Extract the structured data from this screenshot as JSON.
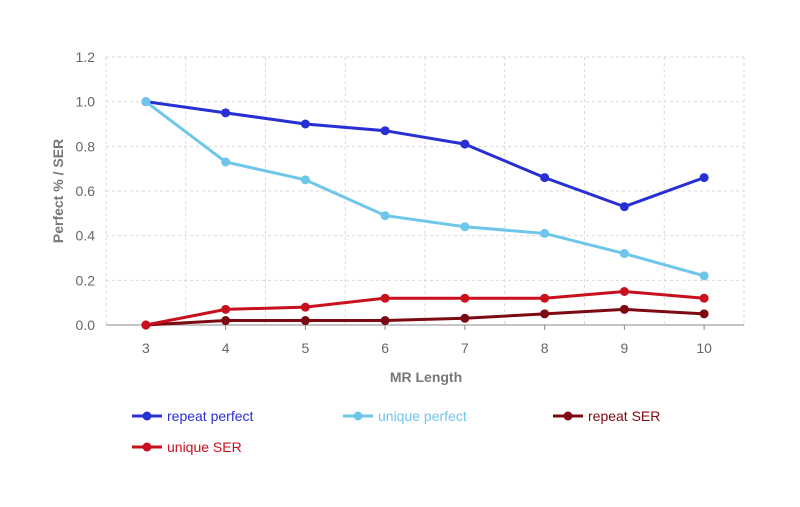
{
  "chart_data": {
    "type": "line",
    "title": "",
    "xlabel": "MR Length",
    "ylabel": "Perfect % / SER",
    "x": [
      3,
      4,
      5,
      6,
      7,
      8,
      9,
      10
    ],
    "ylim": [
      0,
      1.2
    ],
    "yticks": [
      "0.0",
      "0.2",
      "0.4",
      "0.6",
      "0.8",
      "1.0",
      "1.2"
    ],
    "xticks": [
      "3",
      "4",
      "5",
      "6",
      "7",
      "8",
      "9",
      "10"
    ],
    "grid": true,
    "legend_position": "bottom",
    "series": [
      {
        "name": "repeat perfect",
        "color": "#2830d4",
        "values": [
          1.0,
          0.95,
          0.9,
          0.87,
          0.81,
          0.66,
          0.53,
          0.66
        ]
      },
      {
        "name": "unique perfect",
        "color": "#6ec6ea",
        "values": [
          1.0,
          0.73,
          0.65,
          0.49,
          0.44,
          0.41,
          0.32,
          0.22
        ]
      },
      {
        "name": "repeat SER",
        "color": "#7d0a12",
        "values": [
          0.0,
          0.02,
          0.02,
          0.02,
          0.03,
          0.05,
          0.07,
          0.05
        ]
      },
      {
        "name": "unique SER",
        "color": "#c8101e",
        "values": [
          0.0,
          0.07,
          0.08,
          0.12,
          0.12,
          0.12,
          0.15,
          0.12
        ]
      }
    ]
  }
}
